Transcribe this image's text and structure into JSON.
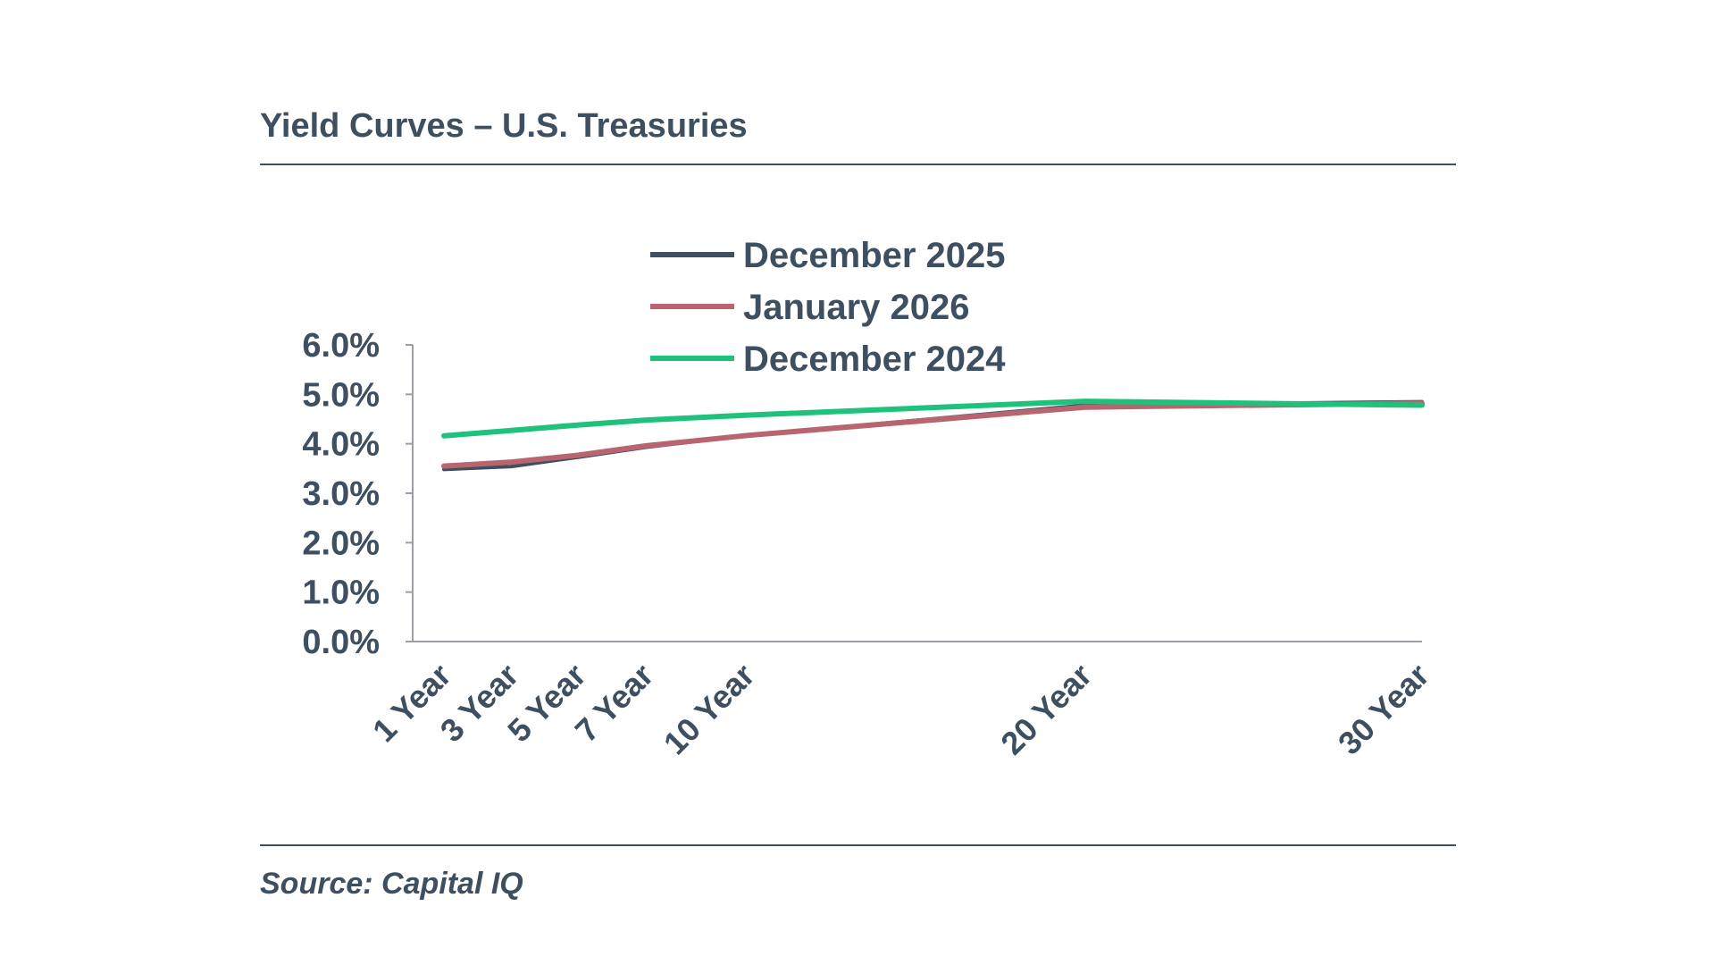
{
  "title": "Yield Curves – U.S. Treasuries",
  "source": "Source: Capital IQ",
  "chart_data": {
    "type": "line",
    "categories": [
      "1 Year",
      "3 Year",
      "5 Year",
      "7 Year",
      "10 Year",
      "20 Year",
      "30 Year"
    ],
    "x": [
      1,
      3,
      5,
      7,
      10,
      20,
      30
    ],
    "series": [
      {
        "name": "December 2025",
        "color": "#3d4f60",
        "values": [
          3.48,
          3.54,
          3.73,
          3.93,
          4.17,
          4.78,
          4.85
        ]
      },
      {
        "name": "January 2026",
        "color": "#b9656f",
        "values": [
          3.55,
          3.63,
          3.77,
          3.96,
          4.17,
          4.74,
          4.82
        ]
      },
      {
        "name": "December 2024",
        "color": "#1ec27a",
        "values": [
          4.16,
          4.27,
          4.38,
          4.48,
          4.58,
          4.86,
          4.78
        ]
      }
    ],
    "ylim": [
      0,
      6
    ],
    "yticks": [
      "0.0%",
      "1.0%",
      "2.0%",
      "3.0%",
      "4.0%",
      "5.0%",
      "6.0%"
    ],
    "xlabel": "",
    "ylabel": "",
    "grid": false,
    "legend": "top"
  }
}
